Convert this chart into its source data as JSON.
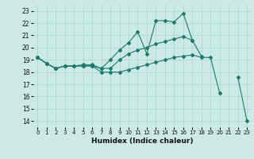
{
  "xlabel": "Humidex (Indice chaleur)",
  "xlim": [
    -0.5,
    23.5
  ],
  "ylim": [
    13.5,
    23.5
  ],
  "yticks": [
    14,
    15,
    16,
    17,
    18,
    19,
    20,
    21,
    22,
    23
  ],
  "xticks": [
    0,
    1,
    2,
    3,
    4,
    5,
    6,
    7,
    8,
    9,
    10,
    11,
    12,
    13,
    14,
    15,
    16,
    17,
    18,
    19,
    20,
    21,
    22,
    23
  ],
  "background_color": "#cce9e5",
  "grid_color": "#aad4d0",
  "line_color": "#1a7a6e",
  "line1_y": [
    19.2,
    18.7,
    18.3,
    18.5,
    18.5,
    18.5,
    18.5,
    18.3,
    19.0,
    19.8,
    20.4,
    21.3,
    19.5,
    22.2,
    22.2,
    22.1,
    22.8,
    20.6,
    19.3,
    null,
    null,
    null,
    null,
    null
  ],
  "line2_y": [
    19.2,
    18.7,
    18.3,
    18.5,
    18.5,
    18.6,
    18.6,
    18.3,
    18.3,
    19.0,
    19.5,
    19.8,
    20.0,
    20.3,
    20.5,
    20.7,
    20.9,
    20.6,
    null,
    null,
    null,
    null,
    null,
    null
  ],
  "line3_y": [
    19.2,
    18.7,
    18.3,
    18.5,
    18.5,
    18.5,
    18.5,
    18.0,
    18.0,
    18.0,
    18.2,
    18.4,
    18.6,
    18.8,
    19.0,
    19.2,
    19.3,
    19.4,
    19.2,
    19.2,
    16.3,
    null,
    17.6,
    14.0
  ]
}
